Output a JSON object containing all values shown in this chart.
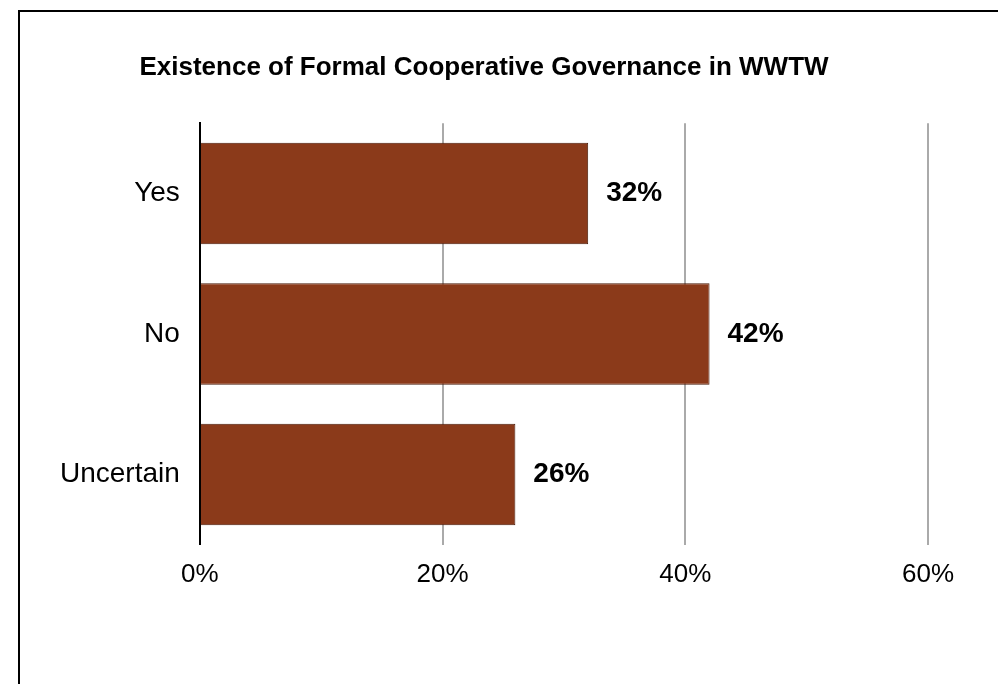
{
  "chart_data": {
    "type": "bar",
    "orientation": "horizontal",
    "title": "Existence of Formal Cooperative Governance in WWTW",
    "categories": [
      "Yes",
      "No",
      "Uncertain"
    ],
    "values": [
      32,
      42,
      26
    ],
    "color": "#8b3a1a",
    "xlim": [
      0,
      60
    ],
    "xticks": [
      {
        "value": 0,
        "label": "0%"
      },
      {
        "value": 20,
        "label": "20%"
      },
      {
        "value": 40,
        "label": "40%"
      },
      {
        "value": 60,
        "label": "60%"
      }
    ],
    "grid": "x",
    "value_labels": [
      "32%",
      "42%",
      "26%"
    ]
  }
}
